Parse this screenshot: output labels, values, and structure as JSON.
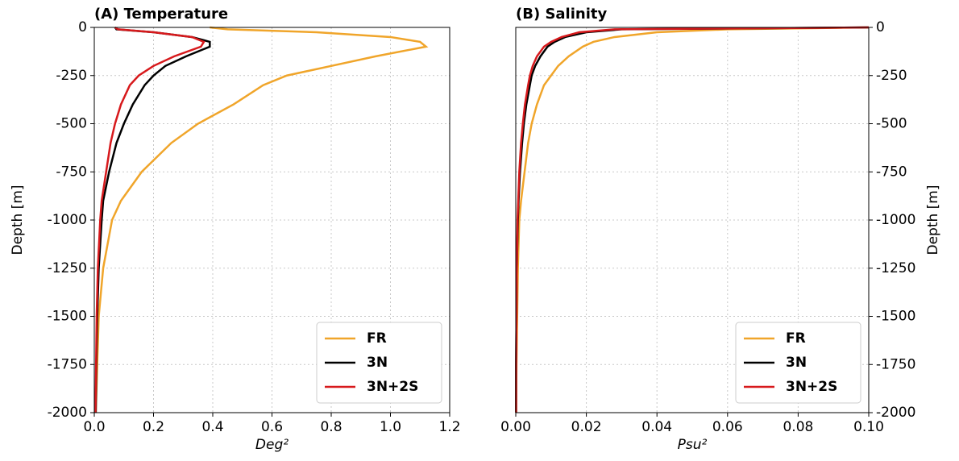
{
  "chart_data": [
    {
      "type": "line",
      "title": "(A) Temperature",
      "xlabel": "Deg²",
      "ylabel": "Depth [m]",
      "depth": [
        0,
        -10,
        -25,
        -50,
        -75,
        -100,
        -150,
        -200,
        -250,
        -300,
        -400,
        -500,
        -600,
        -750,
        -900,
        -1000,
        -1250,
        -1500,
        -1750,
        -2000
      ],
      "series": [
        {
          "name": "FR",
          "color": "#f0a52a",
          "values": [
            0.39,
            0.45,
            0.75,
            1.0,
            1.1,
            1.12,
            0.95,
            0.8,
            0.65,
            0.57,
            0.47,
            0.35,
            0.26,
            0.16,
            0.09,
            0.06,
            0.03,
            0.015,
            0.01,
            0.005
          ]
        },
        {
          "name": "3N",
          "color": "#000000",
          "values": [
            0.07,
            0.075,
            0.2,
            0.33,
            0.39,
            0.39,
            0.31,
            0.24,
            0.2,
            0.17,
            0.13,
            0.1,
            0.075,
            0.05,
            0.03,
            0.025,
            0.015,
            0.01,
            0.007,
            0.005
          ]
        },
        {
          "name": "3N+2S",
          "color": "#d7191c",
          "values": [
            0.07,
            0.08,
            0.2,
            0.33,
            0.37,
            0.36,
            0.27,
            0.2,
            0.15,
            0.12,
            0.09,
            0.07,
            0.055,
            0.04,
            0.025,
            0.02,
            0.012,
            0.008,
            0.006,
            0.004
          ]
        }
      ],
      "xlim": [
        0,
        1.2
      ],
      "xticks": [
        {
          "value": 0,
          "label": "0.0"
        },
        0.2,
        0.4,
        0.6,
        0.8,
        {
          "value": 1,
          "label": "1.0"
        },
        1.2
      ],
      "ylim": [
        -2000,
        0
      ],
      "yticks": [
        0,
        -250,
        -500,
        -750,
        -1000,
        -1250,
        -1500,
        -1750,
        -2000
      ],
      "grid": true,
      "legend": "lower right",
      "yaxis_side": "left"
    },
    {
      "type": "line",
      "title": "(B) Salinity",
      "xlabel": "Psu²",
      "ylabel": "Depth [m]",
      "depth": [
        0,
        -10,
        -25,
        -50,
        -75,
        -100,
        -150,
        -200,
        -250,
        -300,
        -400,
        -500,
        -600,
        -750,
        -900,
        -1000,
        -1250,
        -1500,
        -1750,
        -2000
      ],
      "series": [
        {
          "name": "FR",
          "color": "#f0a52a",
          "values": [
            0.1,
            0.06,
            0.04,
            0.028,
            0.022,
            0.019,
            0.015,
            0.012,
            0.01,
            0.008,
            0.006,
            0.0045,
            0.0035,
            0.0025,
            0.0015,
            0.001,
            0.0006,
            0.0004,
            0.0002,
            0.0001
          ]
        },
        {
          "name": "3N",
          "color": "#000000",
          "values": [
            0.1,
            0.03,
            0.02,
            0.014,
            0.011,
            0.009,
            0.007,
            0.0055,
            0.0045,
            0.004,
            0.003,
            0.0023,
            0.0018,
            0.0012,
            0.0008,
            0.0006,
            0.0003,
            0.0002,
            0.0001,
            0.0001
          ]
        },
        {
          "name": "3N+2S",
          "color": "#d7191c",
          "values": [
            0.1,
            0.028,
            0.018,
            0.013,
            0.01,
            0.008,
            0.006,
            0.0048,
            0.004,
            0.0035,
            0.0026,
            0.002,
            0.0015,
            0.001,
            0.0007,
            0.0005,
            0.0003,
            0.0002,
            0.0001,
            0.0001
          ]
        }
      ],
      "xlim": [
        0,
        0.1
      ],
      "xticks": [
        {
          "value": 0,
          "label": "0.00"
        },
        0.02,
        0.04,
        0.06,
        0.08,
        {
          "value": 0.1,
          "label": "0.10"
        }
      ],
      "ylim": [
        -2000,
        0
      ],
      "yticks": [
        0,
        -250,
        -500,
        -750,
        -1000,
        -1250,
        -1500,
        -1750,
        -2000
      ],
      "grid": true,
      "legend": "lower right",
      "yaxis_side": "right"
    }
  ]
}
